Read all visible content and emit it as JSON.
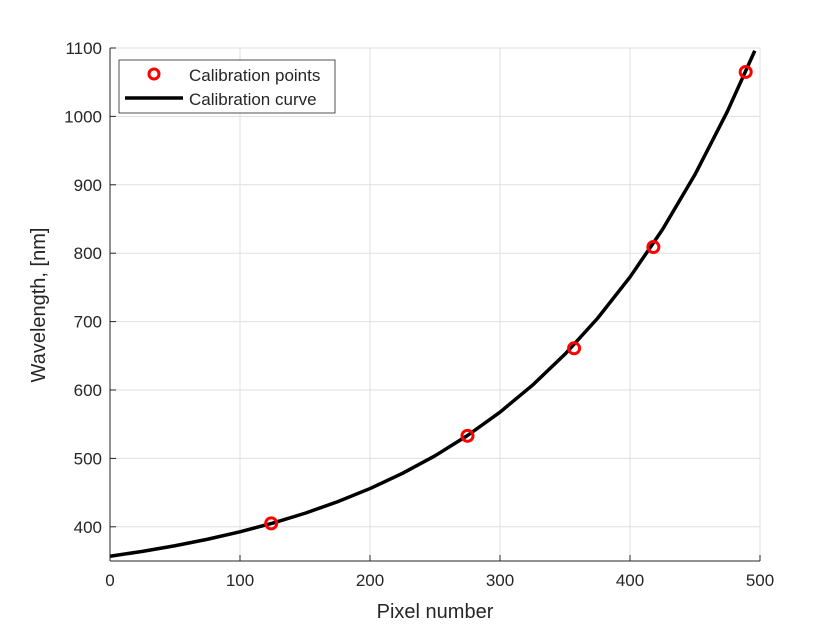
{
  "chart_data": {
    "type": "line",
    "xlabel": "Pixel number",
    "ylabel": "Wavelength, [nm]",
    "xlim": [
      0,
      500
    ],
    "ylim": [
      350,
      1100
    ],
    "xticks": [
      0,
      100,
      200,
      300,
      400,
      500
    ],
    "yticks": [
      400,
      500,
      600,
      700,
      800,
      900,
      1000,
      1100
    ],
    "grid": true,
    "legend_placement": "top-left",
    "series": [
      {
        "name": "Calibration points",
        "kind": "scatter",
        "marker": "circle-open",
        "color": "#ff0000",
        "x": [
          124,
          275,
          357,
          418,
          489
        ],
        "y": [
          405,
          533,
          661,
          809,
          1065
        ]
      },
      {
        "name": "Calibration curve",
        "kind": "line",
        "color": "#000000",
        "x": [
          0,
          25,
          50,
          75,
          100,
          125,
          150,
          175,
          200,
          225,
          250,
          275,
          300,
          325,
          350,
          375,
          400,
          425,
          450,
          475,
          496
        ],
        "y": [
          357,
          364.1,
          372.3,
          381.8,
          392.7,
          405.3,
          419.8,
          436.6,
          455.9,
          478.2,
          503.8,
          533.5,
          567.6,
          607,
          652.4,
          704.7,
          765.1,
          834.6,
          915,
          1007.6,
          1096
        ]
      }
    ]
  }
}
